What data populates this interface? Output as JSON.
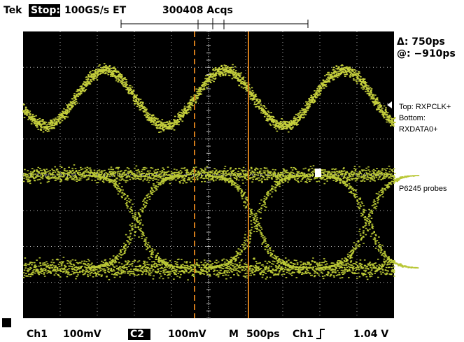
{
  "header": {
    "brand": "Tek",
    "state": "Stop:",
    "sample_rate": "100GS/s ET",
    "acquisitions": "300408 Acqs"
  },
  "readouts": {
    "delta": "Δ: 750ps",
    "at": "@: −910ps"
  },
  "labels": {
    "top": "Top: RXPCLK+",
    "bottom_title": "Bottom:",
    "bottom": "RXDATA0+",
    "probes": "P6245 probes"
  },
  "status_bar": {
    "ch1": "Ch1",
    "ch1_scale": "100mV",
    "ch2": "C2",
    "ch2_scale": "100mV",
    "timebase_label": "M",
    "timebase": "500ps",
    "trigger_source": "Ch1",
    "trigger_level": "1.04 V"
  }
}
